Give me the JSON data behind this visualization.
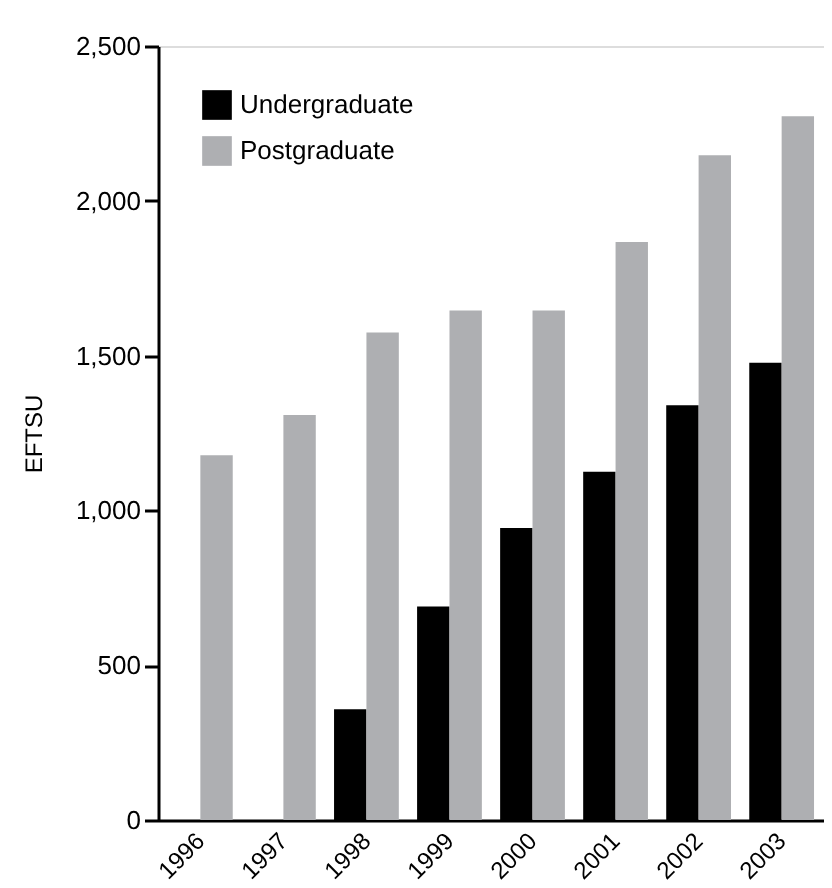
{
  "chart_data": {
    "type": "bar",
    "ylabel": "EFTSU",
    "categories": [
      "1996",
      "1997",
      "1998",
      "1999",
      "2000",
      "2001",
      "2002",
      "2003"
    ],
    "series": [
      {
        "name": "Undergraduate",
        "color": "#000000",
        "values": [
          null,
          null,
          358,
          690,
          943,
          1125,
          1340,
          1477
        ]
      },
      {
        "name": "Postgraduate",
        "color": "#aeafb2",
        "values": [
          1178,
          1308,
          1575,
          1646,
          1646,
          1867,
          2147,
          2273
        ]
      }
    ],
    "ylim": [
      0,
      2500
    ],
    "yticks": [
      {
        "value": 0,
        "label": "0"
      },
      {
        "value": 500,
        "label": "500"
      },
      {
        "value": 1000,
        "label": "1,000"
      },
      {
        "value": 1500,
        "label": "1,500"
      },
      {
        "value": 2000,
        "label": "2,000"
      },
      {
        "value": 2500,
        "label": "2,500"
      }
    ],
    "grid": false,
    "legend": "top left"
  }
}
